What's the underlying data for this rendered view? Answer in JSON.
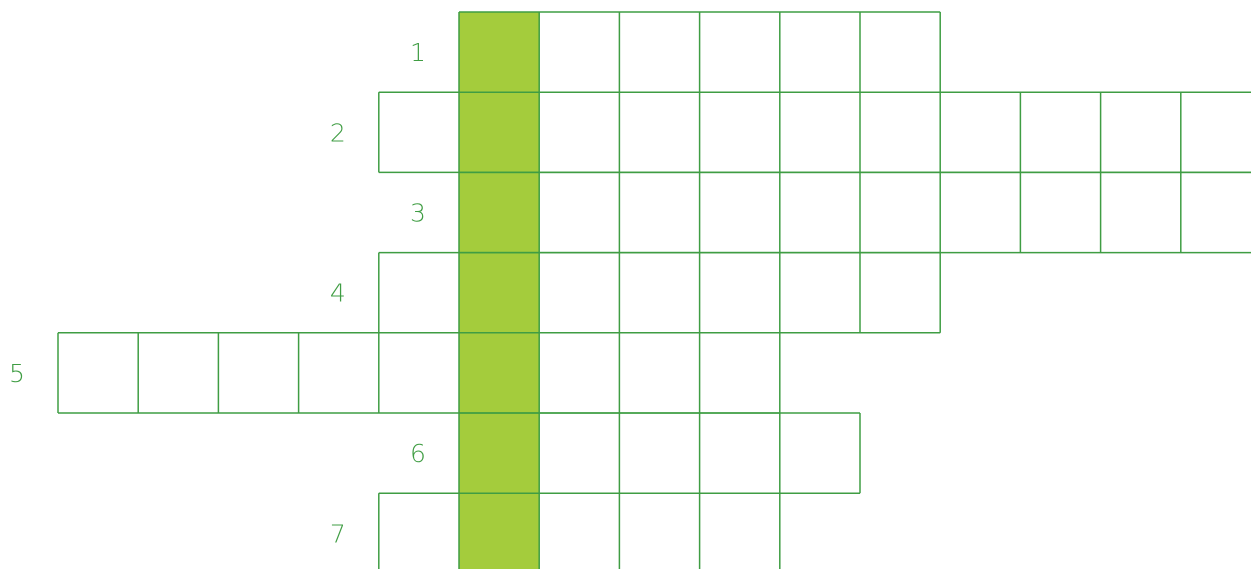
{
  "colors": {
    "grid_line": "#3f9d43",
    "highlight_column": "#a4cc3c",
    "number_text": "#3f9d43",
    "cell_fill": "#ffffff"
  },
  "puzzle": {
    "highlight_column_index": 0,
    "rows": [
      {
        "number": "1",
        "start_col": 0,
        "length": 6,
        "open_right": false,
        "open_bottom": false
      },
      {
        "number": "2",
        "start_col": -1,
        "length": 11,
        "open_right": true,
        "open_bottom": false
      },
      {
        "number": "3",
        "start_col": 0,
        "length": 10,
        "open_right": true,
        "open_bottom": false
      },
      {
        "number": "4",
        "start_col": -1,
        "length": 7,
        "open_right": false,
        "open_bottom": false
      },
      {
        "number": "5",
        "start_col": -5,
        "length": 9,
        "open_right": false,
        "open_bottom": false
      },
      {
        "number": "6",
        "start_col": 0,
        "length": 5,
        "open_right": false,
        "open_bottom": false
      },
      {
        "number": "7",
        "start_col": -1,
        "length": 5,
        "open_right": false,
        "open_bottom": true
      }
    ]
  }
}
